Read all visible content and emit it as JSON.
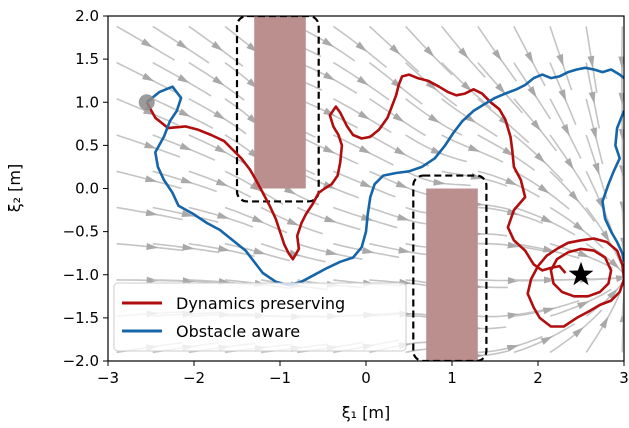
{
  "chart_data": {
    "type": "line",
    "xlabel": "ξ₁ [m]",
    "ylabel": "ξ₂ [m]",
    "xlim": [
      -3,
      3
    ],
    "ylim": [
      -2,
      2
    ],
    "x_ticks": [
      -3,
      -2,
      -1,
      0,
      1,
      2,
      3
    ],
    "y_ticks": [
      -2.0,
      -1.5,
      -1.0,
      -0.5,
      0.0,
      0.5,
      1.0,
      1.5,
      2.0
    ],
    "x_tick_labels": [
      "−3",
      "−2",
      "−1",
      "0",
      "1",
      "2",
      "3"
    ],
    "y_tick_labels": [
      "−2.0",
      "−1.5",
      "−1.0",
      "−0.5",
      "0.0",
      "0.5",
      "1.0",
      "1.5",
      "2.0"
    ],
    "grid": false,
    "legend_position": "lower-left",
    "colors": {
      "dynamics": "#b00e0e",
      "obstacle": "#1565a8",
      "obstacle_fill": "#bc8f8f",
      "stream": "#c4c4c4"
    },
    "attractor": {
      "x": 2.5,
      "y": -1.0
    },
    "obstacles": [
      {
        "x0": -1.3,
        "x1": -0.7,
        "y0": 0.0,
        "y1": 2.0
      },
      {
        "x0": 0.7,
        "x1": 1.3,
        "y0": -2.0,
        "y1": 0.0
      }
    ],
    "margins": [
      {
        "x0": -1.5,
        "x1": -0.55,
        "y0": -0.15,
        "y1": 2.0
      },
      {
        "x0": 0.55,
        "x1": 1.4,
        "y0": -2.0,
        "y1": 0.15
      }
    ],
    "start": {
      "x": -2.55,
      "y": 1.0
    },
    "series": [
      {
        "name": "Dynamics preserving",
        "color": "#b00e0e",
        "points": [
          [
            -2.55,
            1.0
          ],
          [
            -2.45,
            0.82
          ],
          [
            -2.3,
            0.7
          ],
          [
            -2.1,
            0.72
          ],
          [
            -1.95,
            0.68
          ],
          [
            -1.8,
            0.62
          ],
          [
            -1.65,
            0.55
          ],
          [
            -1.55,
            0.45
          ],
          [
            -1.45,
            0.35
          ],
          [
            -1.35,
            0.22
          ],
          [
            -1.28,
            0.1
          ],
          [
            -1.2,
            -0.05
          ],
          [
            -1.12,
            -0.2
          ],
          [
            -1.05,
            -0.35
          ],
          [
            -1.0,
            -0.5
          ],
          [
            -0.95,
            -0.65
          ],
          [
            -0.9,
            -0.75
          ],
          [
            -0.85,
            -0.82
          ],
          [
            -0.78,
            -0.7
          ],
          [
            -0.8,
            -0.55
          ],
          [
            -0.75,
            -0.4
          ],
          [
            -0.7,
            -0.3
          ],
          [
            -0.62,
            -0.18
          ],
          [
            -0.55,
            -0.05
          ],
          [
            -0.48,
            0.0
          ],
          [
            -0.4,
            0.05
          ],
          [
            -0.33,
            0.15
          ],
          [
            -0.3,
            0.3
          ],
          [
            -0.28,
            0.5
          ],
          [
            -0.32,
            0.62
          ],
          [
            -0.38,
            0.72
          ],
          [
            -0.42,
            0.85
          ],
          [
            -0.35,
            0.95
          ],
          [
            -0.3,
            0.88
          ],
          [
            -0.22,
            0.72
          ],
          [
            -0.15,
            0.62
          ],
          [
            -0.05,
            0.58
          ],
          [
            0.05,
            0.6
          ],
          [
            0.15,
            0.68
          ],
          [
            0.25,
            0.82
          ],
          [
            0.3,
            0.95
          ],
          [
            0.35,
            1.08
          ],
          [
            0.38,
            1.2
          ],
          [
            0.42,
            1.3
          ],
          [
            0.5,
            1.32
          ],
          [
            0.6,
            1.28
          ],
          [
            0.72,
            1.25
          ],
          [
            0.85,
            1.18
          ],
          [
            0.95,
            1.12
          ],
          [
            1.05,
            1.08
          ],
          [
            1.15,
            1.1
          ],
          [
            1.25,
            1.15
          ],
          [
            1.35,
            1.1
          ],
          [
            1.45,
            1.0
          ],
          [
            1.55,
            0.92
          ],
          [
            1.62,
            0.8
          ],
          [
            1.68,
            0.6
          ],
          [
            1.7,
            0.45
          ],
          [
            1.72,
            0.25
          ],
          [
            1.8,
            0.1
          ],
          [
            1.85,
            -0.1
          ],
          [
            1.72,
            -0.25
          ],
          [
            1.65,
            -0.45
          ],
          [
            1.72,
            -0.6
          ],
          [
            1.85,
            -0.72
          ],
          [
            1.95,
            -0.88
          ],
          [
            2.05,
            -0.95
          ],
          [
            2.15,
            -0.92
          ],
          [
            2.25,
            -0.9
          ],
          [
            2.32,
            -0.98
          ]
        ]
      },
      {
        "name": "",
        "color": "#b00e0e",
        "closed": true,
        "points": [
          [
            2.5,
            -0.6
          ],
          [
            2.65,
            -0.58
          ],
          [
            2.8,
            -0.62
          ],
          [
            2.92,
            -0.72
          ],
          [
            2.98,
            -0.88
          ],
          [
            3.0,
            -1.05
          ],
          [
            2.95,
            -1.2
          ],
          [
            2.85,
            -1.3
          ],
          [
            2.72,
            -1.35
          ],
          [
            2.6,
            -1.42
          ],
          [
            2.45,
            -1.5
          ],
          [
            2.3,
            -1.6
          ],
          [
            2.15,
            -1.6
          ],
          [
            2.02,
            -1.5
          ],
          [
            1.95,
            -1.38
          ],
          [
            1.88,
            -1.22
          ],
          [
            1.92,
            -1.05
          ],
          [
            2.0,
            -0.9
          ],
          [
            2.1,
            -0.78
          ],
          [
            2.22,
            -0.7
          ],
          [
            2.35,
            -0.63
          ]
        ]
      },
      {
        "name": "",
        "color": "#b00e0e",
        "closed": true,
        "points": [
          [
            2.5,
            -0.7
          ],
          [
            2.65,
            -0.72
          ],
          [
            2.78,
            -0.8
          ],
          [
            2.85,
            -0.95
          ],
          [
            2.82,
            -1.1
          ],
          [
            2.72,
            -1.2
          ],
          [
            2.58,
            -1.25
          ],
          [
            2.42,
            -1.25
          ],
          [
            2.28,
            -1.2
          ],
          [
            2.18,
            -1.1
          ],
          [
            2.15,
            -0.95
          ],
          [
            2.22,
            -0.82
          ],
          [
            2.35,
            -0.74
          ]
        ]
      },
      {
        "name": "Obstacle aware",
        "color": "#1565a8",
        "points": [
          [
            -2.55,
            1.0
          ],
          [
            -2.4,
            1.12
          ],
          [
            -2.25,
            1.18
          ],
          [
            -2.15,
            1.05
          ],
          [
            -2.2,
            0.9
          ],
          [
            -2.28,
            0.78
          ],
          [
            -2.35,
            0.6
          ],
          [
            -2.45,
            0.42
          ],
          [
            -2.42,
            0.25
          ],
          [
            -2.35,
            0.1
          ],
          [
            -2.25,
            -0.05
          ],
          [
            -2.18,
            -0.2
          ],
          [
            -2.0,
            -0.3
          ],
          [
            -1.85,
            -0.4
          ],
          [
            -1.7,
            -0.48
          ],
          [
            -1.55,
            -0.6
          ],
          [
            -1.4,
            -0.72
          ],
          [
            -1.3,
            -0.85
          ],
          [
            -1.2,
            -0.98
          ],
          [
            -1.05,
            -1.08
          ],
          [
            -0.9,
            -1.12
          ],
          [
            -0.75,
            -1.08
          ],
          [
            -0.6,
            -1.0
          ],
          [
            -0.45,
            -0.92
          ],
          [
            -0.3,
            -0.85
          ],
          [
            -0.15,
            -0.8
          ],
          [
            -0.05,
            -0.68
          ],
          [
            0.0,
            -0.5
          ],
          [
            0.02,
            -0.3
          ],
          [
            0.05,
            -0.1
          ],
          [
            0.1,
            0.05
          ],
          [
            0.2,
            0.15
          ],
          [
            0.35,
            0.18
          ],
          [
            0.5,
            0.2
          ],
          [
            0.65,
            0.25
          ],
          [
            0.8,
            0.35
          ],
          [
            0.92,
            0.5
          ],
          [
            1.02,
            0.65
          ],
          [
            1.12,
            0.78
          ],
          [
            1.25,
            0.9
          ],
          [
            1.38,
            0.98
          ],
          [
            1.5,
            1.05
          ],
          [
            1.62,
            1.1
          ],
          [
            1.75,
            1.15
          ],
          [
            1.85,
            1.2
          ],
          [
            1.95,
            1.28
          ],
          [
            2.05,
            1.32
          ],
          [
            2.15,
            1.28
          ],
          [
            2.25,
            1.3
          ],
          [
            2.35,
            1.35
          ],
          [
            2.45,
            1.38
          ],
          [
            2.55,
            1.4
          ],
          [
            2.65,
            1.38
          ],
          [
            2.75,
            1.35
          ],
          [
            2.85,
            1.38
          ],
          [
            2.95,
            1.32
          ],
          [
            3.0,
            1.28
          ]
        ]
      },
      {
        "name": "",
        "color": "#1565a8",
        "points": [
          [
            3.0,
            0.9
          ],
          [
            2.92,
            0.7
          ],
          [
            2.9,
            0.5
          ],
          [
            2.95,
            0.35
          ],
          [
            2.88,
            0.2
          ],
          [
            2.82,
            0.05
          ],
          [
            2.75,
            -0.15
          ],
          [
            2.78,
            -0.35
          ],
          [
            2.85,
            -0.5
          ],
          [
            2.92,
            -0.62
          ],
          [
            2.98,
            -0.75
          ],
          [
            3.0,
            -0.85
          ]
        ]
      }
    ]
  }
}
